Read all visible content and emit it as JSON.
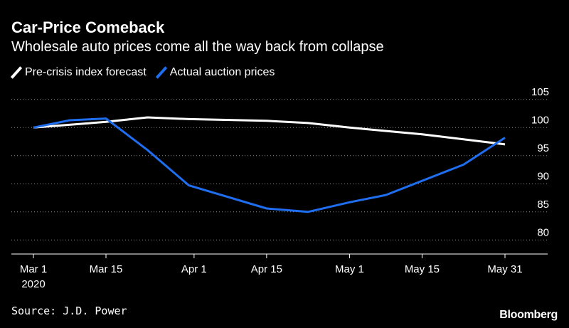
{
  "header": {
    "title": "Car-Price Comeback",
    "subtitle": "Wholesale auto prices come all the way back from collapse"
  },
  "legend": [
    {
      "label": "Pre-crisis index forecast",
      "color": "#ffffff"
    },
    {
      "label": "Actual auction prices",
      "color": "#1f6ef0"
    }
  ],
  "footer": {
    "source": "Source: J.D. Power",
    "brand": "Bloomberg"
  },
  "chart_data": {
    "type": "line",
    "x_axis": {
      "type": "date",
      "min": "2020-03-01",
      "max": "2020-05-31",
      "ticks": [
        {
          "date": "2020-03-01",
          "label": "Mar 1",
          "sublabel": "2020"
        },
        {
          "date": "2020-03-15",
          "label": "Mar 15"
        },
        {
          "date": "2020-04-01",
          "label": "Apr 1"
        },
        {
          "date": "2020-04-15",
          "label": "Apr 15"
        },
        {
          "date": "2020-05-01",
          "label": "May 1"
        },
        {
          "date": "2020-05-15",
          "label": "May 15"
        },
        {
          "date": "2020-05-31",
          "label": "May 31"
        }
      ]
    },
    "y_axis": {
      "min": 77.5,
      "max": 107.5,
      "ticks": [
        80,
        85,
        90,
        95,
        100,
        105
      ],
      "position": "right",
      "grid": "dotted"
    },
    "series": [
      {
        "name": "Pre-crisis index forecast",
        "color": "#ffffff",
        "points": [
          [
            "2020-03-01",
            100.0
          ],
          [
            "2020-03-15",
            101.0
          ],
          [
            "2020-03-23",
            101.8
          ],
          [
            "2020-03-31",
            101.5
          ],
          [
            "2020-04-15",
            101.2
          ],
          [
            "2020-04-23",
            100.8
          ],
          [
            "2020-05-01",
            100.0
          ],
          [
            "2020-05-15",
            98.8
          ],
          [
            "2020-05-31",
            97.0
          ]
        ]
      },
      {
        "name": "Actual auction prices",
        "color": "#1f6ef0",
        "points": [
          [
            "2020-03-01",
            100.0
          ],
          [
            "2020-03-08",
            101.3
          ],
          [
            "2020-03-15",
            101.6
          ],
          [
            "2020-03-23",
            96.0
          ],
          [
            "2020-03-31",
            89.7
          ],
          [
            "2020-04-15",
            85.6
          ],
          [
            "2020-04-23",
            85.0
          ],
          [
            "2020-05-01",
            86.7
          ],
          [
            "2020-05-08",
            88.0
          ],
          [
            "2020-05-23",
            93.4
          ],
          [
            "2020-05-31",
            98.2
          ]
        ]
      }
    ]
  }
}
